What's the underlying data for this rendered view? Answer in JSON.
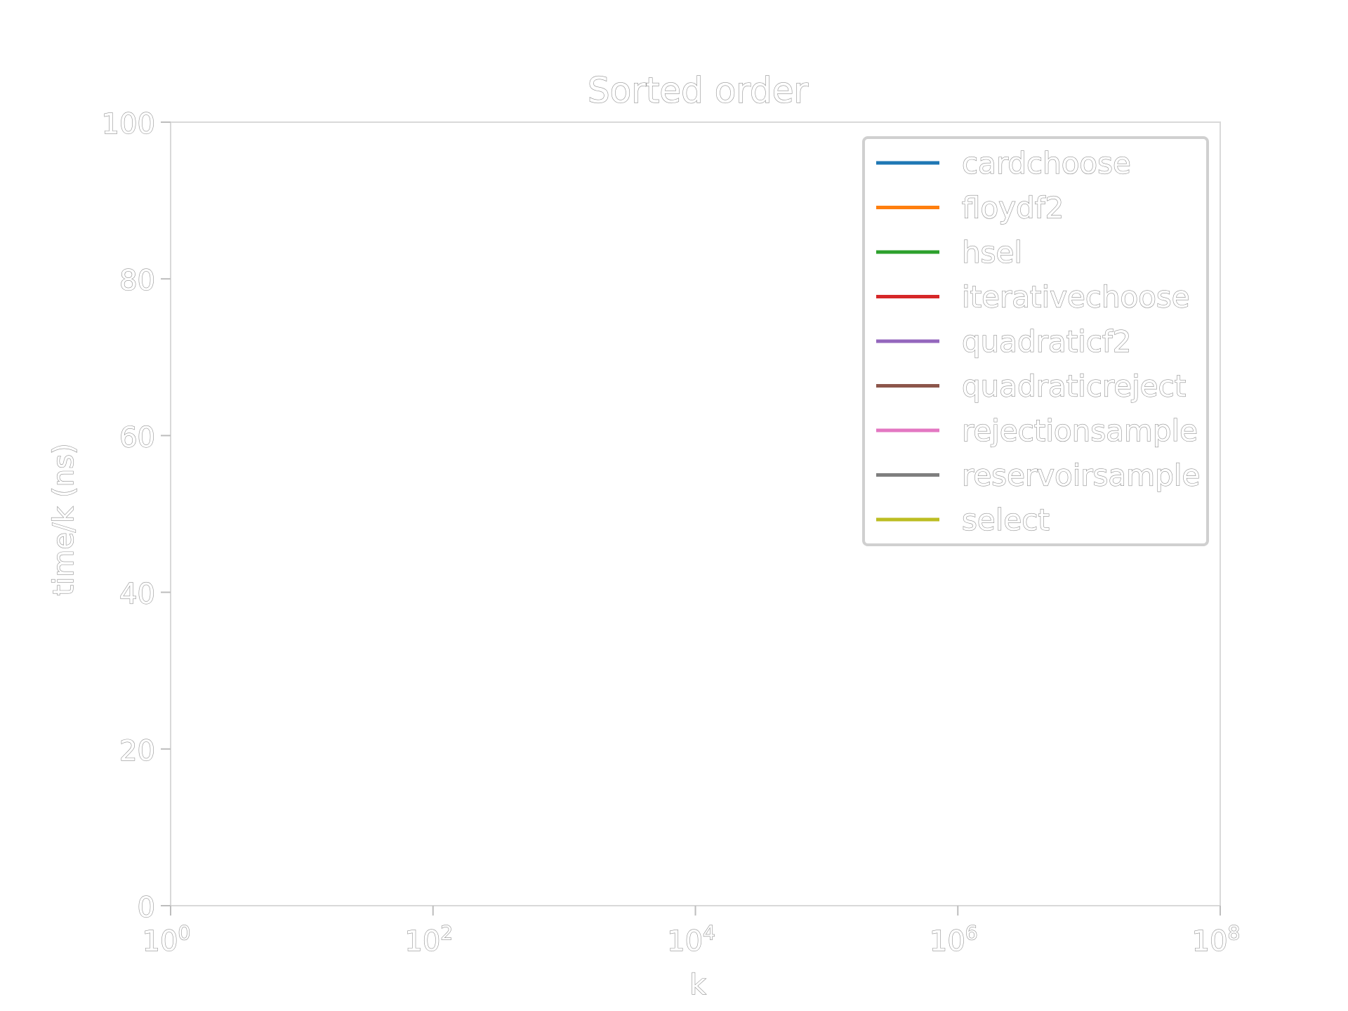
{
  "chart_data": {
    "type": "line",
    "title": "Sorted order",
    "xlabel": "k",
    "ylabel": "time/k (ns)",
    "xscale": "log",
    "xlim": [
      1,
      100000000
    ],
    "ylim": [
      0,
      100
    ],
    "x_tick_base": "10",
    "x_ticks": [
      {
        "value": 1,
        "exp": "0"
      },
      {
        "value": 100,
        "exp": "2"
      },
      {
        "value": 10000,
        "exp": "4"
      },
      {
        "value": 1000000,
        "exp": "6"
      },
      {
        "value": 100000000,
        "exp": "8"
      }
    ],
    "y_ticks": [
      0,
      20,
      40,
      60,
      80,
      100
    ],
    "grid": false,
    "legend_position": "top-right",
    "series": [
      {
        "name": "cardchoose",
        "color": "#1f77b4",
        "x": [],
        "y": []
      },
      {
        "name": "floydf2",
        "color": "#ff7f0e",
        "x": [],
        "y": []
      },
      {
        "name": "hsel",
        "color": "#2ca02c",
        "x": [],
        "y": []
      },
      {
        "name": "iterativechoose",
        "color": "#d62728",
        "x": [],
        "y": []
      },
      {
        "name": "quadraticf2",
        "color": "#9467bd",
        "x": [],
        "y": []
      },
      {
        "name": "quadraticreject",
        "color": "#8c564b",
        "x": [],
        "y": []
      },
      {
        "name": "rejectionsample",
        "color": "#e377c2",
        "x": [],
        "y": []
      },
      {
        "name": "reservoirsample",
        "color": "#7f7f7f",
        "x": [],
        "y": []
      },
      {
        "name": "select",
        "color": "#bcbd22",
        "x": [],
        "y": []
      }
    ]
  }
}
